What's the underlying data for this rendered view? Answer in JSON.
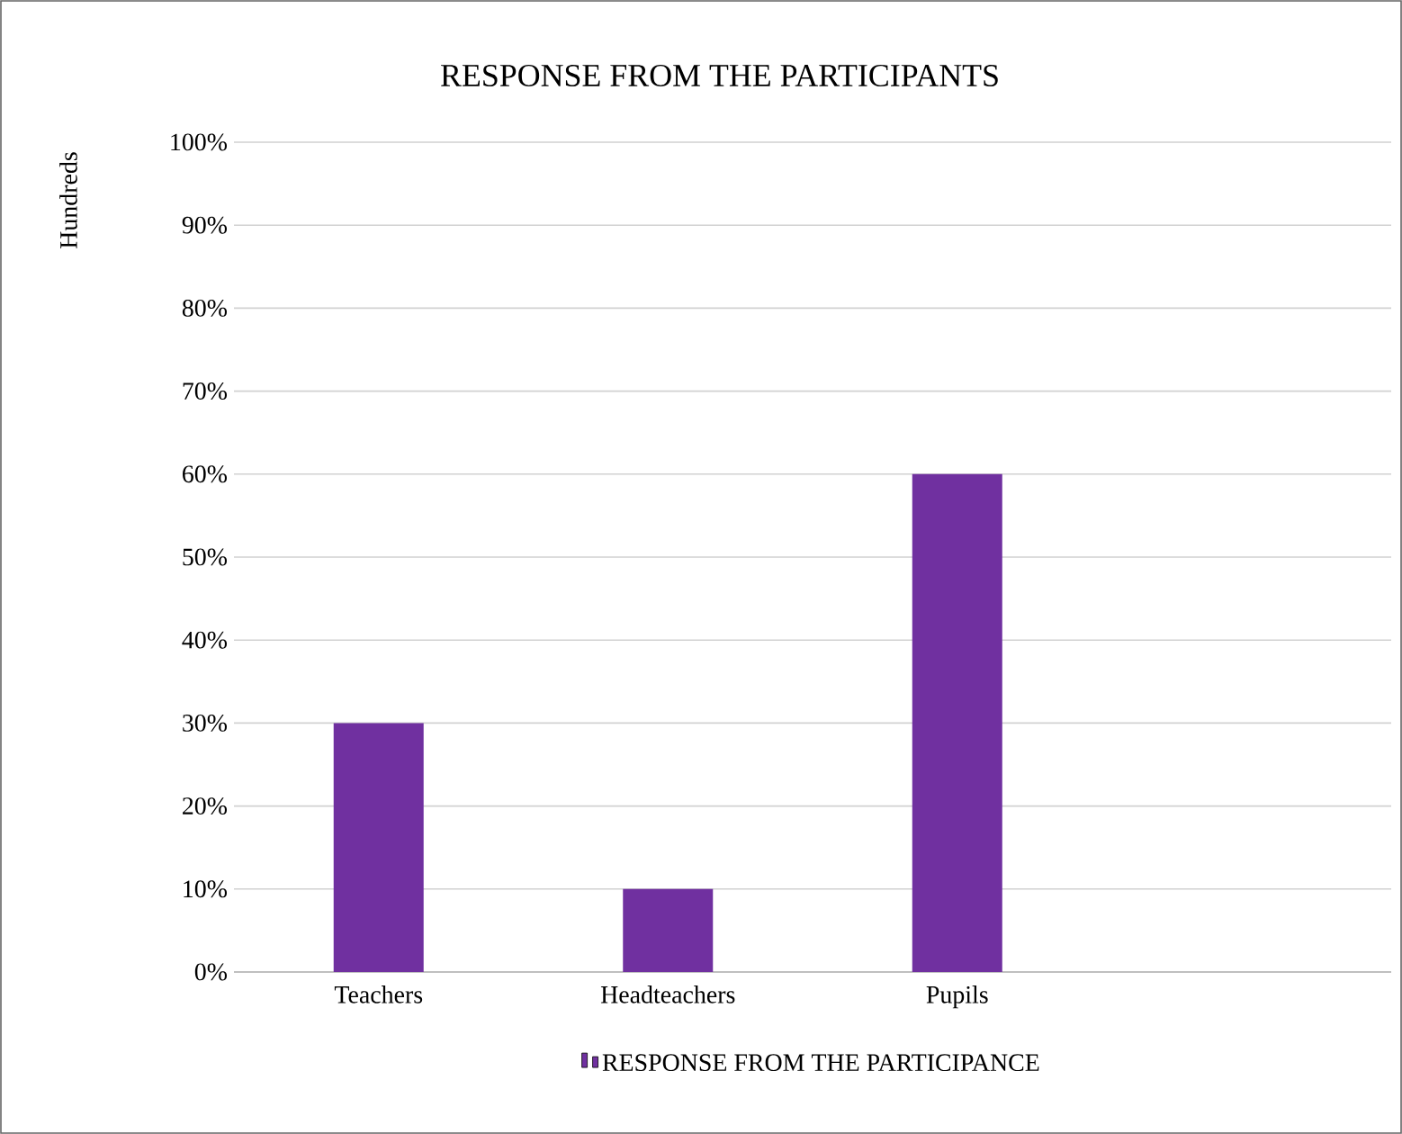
{
  "chart_data": {
    "type": "bar",
    "title": "RESPONSE FROM THE PARTICIPANTS",
    "ylabel": "Hundreds",
    "categories": [
      "Teachers",
      "Headteachers",
      "Pupils",
      null
    ],
    "series": [
      {
        "name": "RESPONSE FROM THE PARTICIPANCE",
        "color": "#7030a0",
        "values": [
          30,
          10,
          60,
          null
        ]
      }
    ],
    "ylim": [
      0,
      100
    ],
    "yticks": [
      {
        "value": 0,
        "label": "0%"
      },
      {
        "value": 10,
        "label": "10%"
      },
      {
        "value": 20,
        "label": "20%"
      },
      {
        "value": 30,
        "label": "30%"
      },
      {
        "value": 40,
        "label": "40%"
      },
      {
        "value": 50,
        "label": "50%"
      },
      {
        "value": 60,
        "label": "60%"
      },
      {
        "value": 70,
        "label": "70%"
      },
      {
        "value": 80,
        "label": "80%"
      },
      {
        "value": 90,
        "label": "90%"
      },
      {
        "value": 100,
        "label": "100%"
      }
    ],
    "grid": "y",
    "legend": "bottom"
  }
}
